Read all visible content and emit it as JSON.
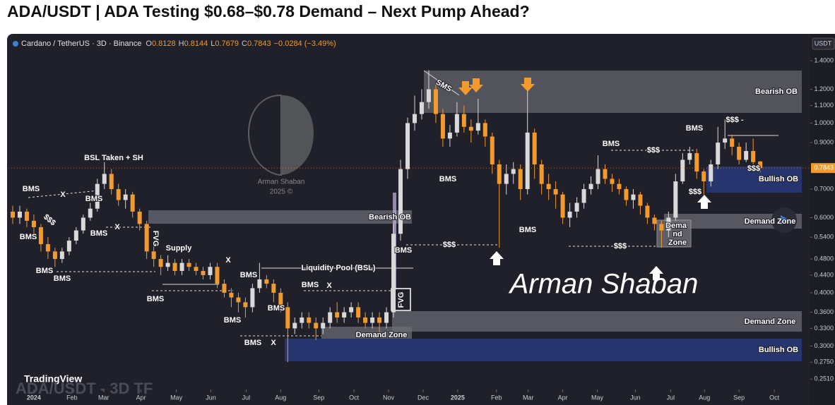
{
  "title": "ADA/USDT | ADA Testing $0.68–$0.78 Demand – Next Pump Ahead?",
  "chart_data": {
    "type": "candlestick",
    "legend": {
      "symbol": "Cardano / TetherUS · 3D · Binance",
      "fields": [
        [
          "O",
          "0.8128"
        ],
        [
          "H",
          "0.8144"
        ],
        [
          "L",
          "0.7679"
        ],
        [
          "C",
          "0.7843"
        ]
      ],
      "change": "−0.0284 (−3.49%)"
    },
    "axis_currency": "USDT",
    "log_scale": true,
    "grid": false,
    "up_color": "#d9d9d9",
    "down_color": "#f29a2e",
    "open": [
      0.62,
      0.6,
      0.62,
      0.59,
      0.57,
      0.52,
      0.5,
      0.48,
      0.5,
      0.53,
      0.56,
      0.6,
      0.63,
      0.72,
      0.76,
      0.7,
      0.66,
      0.68,
      0.62,
      0.58,
      0.5,
      0.48,
      0.46,
      0.47,
      0.45,
      0.47,
      0.46,
      0.45,
      0.44,
      0.46,
      0.42,
      0.4,
      0.39,
      0.38,
      0.37,
      0.41,
      0.43,
      0.42,
      0.4,
      0.37,
      0.33,
      0.34,
      0.35,
      0.34,
      0.33,
      0.34,
      0.36,
      0.35,
      0.36,
      0.37,
      0.35,
      0.34,
      0.35,
      0.34,
      0.36,
      0.55,
      0.78,
      1.0,
      1.05,
      1.12,
      1.2,
      1.05,
      0.92,
      0.95,
      1.05,
      0.98,
      0.96,
      1.0,
      0.93,
      0.8,
      0.72,
      0.76,
      0.78,
      0.7,
      0.95,
      0.8,
      0.72,
      0.7,
      0.68,
      0.6,
      0.62,
      0.65,
      0.7,
      0.72,
      0.78,
      0.74,
      0.72,
      0.7,
      0.66,
      0.68,
      0.64,
      0.6,
      0.58,
      0.56,
      0.6,
      0.73,
      0.82,
      0.85,
      0.77,
      0.73,
      0.8,
      0.9,
      0.92,
      0.88,
      0.82,
      0.86,
      0.8128
    ],
    "high": [
      0.64,
      0.64,
      0.63,
      0.61,
      0.58,
      0.54,
      0.51,
      0.51,
      0.54,
      0.57,
      0.61,
      0.65,
      0.74,
      0.81,
      0.78,
      0.72,
      0.7,
      0.69,
      0.63,
      0.59,
      0.52,
      0.49,
      0.49,
      0.48,
      0.48,
      0.48,
      0.47,
      0.46,
      0.47,
      0.47,
      0.43,
      0.41,
      0.4,
      0.39,
      0.42,
      0.47,
      0.44,
      0.43,
      0.41,
      0.38,
      0.35,
      0.36,
      0.36,
      0.35,
      0.35,
      0.37,
      0.38,
      0.37,
      0.38,
      0.38,
      0.36,
      0.36,
      0.36,
      0.37,
      0.58,
      0.82,
      1.03,
      1.16,
      1.2,
      1.33,
      1.23,
      1.08,
      0.99,
      1.12,
      1.1,
      1.02,
      1.14,
      1.02,
      0.95,
      0.82,
      0.8,
      0.81,
      0.8,
      1.19,
      0.97,
      0.82,
      0.76,
      0.73,
      0.69,
      0.65,
      0.67,
      0.72,
      0.75,
      0.84,
      0.8,
      0.76,
      0.74,
      0.71,
      0.7,
      0.69,
      0.65,
      0.61,
      0.59,
      0.62,
      0.76,
      0.85,
      0.88,
      0.87,
      0.78,
      0.82,
      0.98,
      1.02,
      0.94,
      0.9,
      0.9,
      0.92,
      0.8144
    ],
    "low": [
      0.58,
      0.58,
      0.57,
      0.55,
      0.5,
      0.48,
      0.46,
      0.47,
      0.49,
      0.52,
      0.55,
      0.59,
      0.62,
      0.7,
      0.68,
      0.64,
      0.63,
      0.6,
      0.56,
      0.48,
      0.46,
      0.44,
      0.45,
      0.44,
      0.44,
      0.45,
      0.44,
      0.43,
      0.43,
      0.41,
      0.39,
      0.37,
      0.36,
      0.35,
      0.36,
      0.4,
      0.41,
      0.38,
      0.36,
      0.275,
      0.32,
      0.33,
      0.33,
      0.31,
      0.32,
      0.33,
      0.34,
      0.34,
      0.35,
      0.34,
      0.33,
      0.33,
      0.32,
      0.33,
      0.35,
      0.53,
      0.74,
      0.96,
      1.02,
      1.08,
      1.0,
      0.88,
      0.88,
      0.93,
      0.95,
      0.9,
      0.94,
      0.88,
      0.76,
      0.51,
      0.68,
      0.72,
      0.66,
      0.68,
      0.74,
      0.68,
      0.66,
      0.63,
      0.58,
      0.57,
      0.6,
      0.63,
      0.68,
      0.7,
      0.72,
      0.69,
      0.68,
      0.64,
      0.63,
      0.61,
      0.58,
      0.56,
      0.51,
      0.54,
      0.59,
      0.72,
      0.8,
      0.74,
      0.68,
      0.71,
      0.78,
      0.87,
      0.84,
      0.8,
      0.81,
      0.8,
      0.7679
    ],
    "close": [
      0.6,
      0.62,
      0.59,
      0.57,
      0.52,
      0.5,
      0.48,
      0.5,
      0.53,
      0.56,
      0.6,
      0.63,
      0.72,
      0.76,
      0.7,
      0.66,
      0.68,
      0.62,
      0.58,
      0.5,
      0.48,
      0.46,
      0.47,
      0.45,
      0.47,
      0.46,
      0.45,
      0.44,
      0.46,
      0.42,
      0.4,
      0.39,
      0.38,
      0.37,
      0.41,
      0.43,
      0.42,
      0.4,
      0.37,
      0.33,
      0.34,
      0.35,
      0.34,
      0.33,
      0.34,
      0.36,
      0.35,
      0.36,
      0.37,
      0.35,
      0.34,
      0.35,
      0.34,
      0.36,
      0.55,
      0.78,
      1.0,
      1.05,
      1.12,
      1.2,
      1.05,
      0.92,
      0.95,
      1.05,
      0.98,
      0.96,
      1.0,
      0.93,
      0.8,
      0.72,
      0.76,
      0.78,
      0.7,
      0.95,
      0.8,
      0.72,
      0.7,
      0.68,
      0.6,
      0.62,
      0.65,
      0.7,
      0.72,
      0.78,
      0.74,
      0.72,
      0.7,
      0.66,
      0.68,
      0.64,
      0.6,
      0.58,
      0.56,
      0.6,
      0.73,
      0.82,
      0.85,
      0.77,
      0.73,
      0.8,
      0.9,
      0.92,
      0.88,
      0.82,
      0.86,
      0.81,
      0.7843
    ],
    "last_price": 0.7843,
    "xlim": [
      -0.6,
      112.9
    ],
    "xticks": [
      {
        "value": 3,
        "label": "2024"
      },
      {
        "value": 8.4,
        "label": "Feb"
      },
      {
        "value": 12.9,
        "label": "Mar"
      },
      {
        "value": 18.2,
        "label": "Apr"
      },
      {
        "value": 23.2,
        "label": "May"
      },
      {
        "value": 28.1,
        "label": "Jun"
      },
      {
        "value": 33.1,
        "label": "Jul"
      },
      {
        "value": 38,
        "label": "Aug"
      },
      {
        "value": 43.4,
        "label": "Sep"
      },
      {
        "value": 48.4,
        "label": "Oct"
      },
      {
        "value": 53.3,
        "label": "Nov"
      },
      {
        "value": 58.2,
        "label": "Dec"
      },
      {
        "value": 63.1,
        "label": "2025"
      },
      {
        "value": 68.6,
        "label": "Feb"
      },
      {
        "value": 73.1,
        "label": "Mar"
      },
      {
        "value": 78,
        "label": "Apr"
      },
      {
        "value": 82.9,
        "label": "May"
      },
      {
        "value": 88.3,
        "label": "Jun"
      },
      {
        "value": 93.3,
        "label": "Jul"
      },
      {
        "value": 98.1,
        "label": "Aug"
      },
      {
        "value": 103,
        "label": "Sep"
      },
      {
        "value": 108,
        "label": "Oct"
      }
    ],
    "ylim": [
      0.24,
      1.5
    ],
    "yticks": [
      {
        "value": 1.4,
        "label": "1.4000"
      },
      {
        "value": 1.2,
        "label": "1.2000"
      },
      {
        "value": 1.1,
        "label": "1.1000"
      },
      {
        "value": 1.0,
        "label": "1.0000"
      },
      {
        "value": 0.9,
        "label": "0.9000"
      },
      {
        "value": 0.7,
        "label": "0.7000"
      },
      {
        "value": 0.6,
        "label": "0.6000"
      },
      {
        "value": 0.54,
        "label": "0.5400"
      },
      {
        "value": 0.48,
        "label": "0.4800"
      },
      {
        "value": 0.44,
        "label": "0.4400"
      },
      {
        "value": 0.4,
        "label": "0.4000"
      },
      {
        "value": 0.36,
        "label": "0.3600"
      },
      {
        "value": 0.33,
        "label": "0.3300"
      },
      {
        "value": 0.3,
        "label": "0.3000"
      },
      {
        "value": 0.275,
        "label": "0.2750"
      },
      {
        "value": 0.251,
        "label": "0.2510"
      }
    ],
    "annotations": [
      "BSL Taken + SH",
      "BMS",
      "BMS",
      "BMS",
      "BMS",
      "BMS",
      "BMS",
      "BMS",
      "BMS",
      "BMS",
      "BMS",
      "BMS",
      "BMS",
      "BMS",
      "BMS",
      "BMS",
      "BMS",
      "BMS",
      "X",
      "X",
      "X",
      "X",
      "X",
      "$$$",
      "$$$",
      "$$$",
      "$$$",
      "$$$",
      "$$$ -",
      "$$$",
      "Supply",
      "FVG",
      "FVG",
      "Liquidity Pool (BSL)",
      "Bearish OB",
      "Bearish OB",
      "Demand Zone",
      "Demand Zone",
      "Demand Zone",
      "Dema",
      "nd",
      "Zone",
      "Bullish OB",
      "Bullish OB",
      "SMS",
      "Arman Shaban",
      "2025 ©",
      "Arman Shaban",
      "TradingView",
      "ADA/USDT - 3D TF"
    ]
  }
}
